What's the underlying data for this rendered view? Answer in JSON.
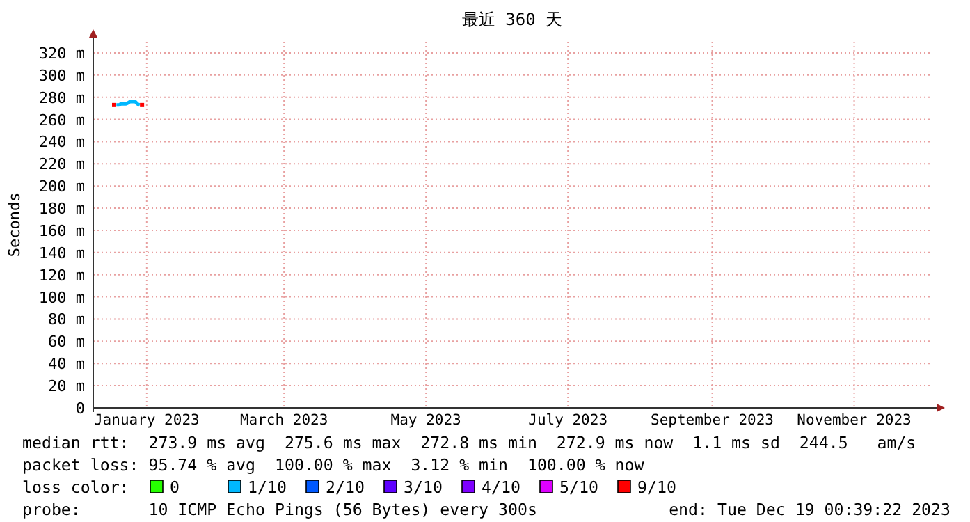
{
  "chart_data": {
    "type": "line",
    "title": "最近 360 天",
    "ylabel": "Seconds",
    "xlim": [
      "2022-12-24T00:39",
      "2023-12-19T00:39"
    ],
    "xticks": [
      {
        "value": "2023-01-16",
        "label": "January 2023"
      },
      {
        "value": "2023-03-16",
        "label": "March 2023"
      },
      {
        "value": "2023-05-16",
        "label": "May 2023"
      },
      {
        "value": "2023-07-16",
        "label": "July 2023"
      },
      {
        "value": "2023-09-16",
        "label": "September 2023"
      },
      {
        "value": "2023-11-16",
        "label": "November 2023"
      }
    ],
    "ylim": [
      0,
      330
    ],
    "yticks": [
      0,
      {
        "value": 20,
        "label": "20 m"
      },
      {
        "value": 40,
        "label": "40 m"
      },
      {
        "value": 60,
        "label": "60 m"
      },
      {
        "value": 80,
        "label": "80 m"
      },
      {
        "value": 100,
        "label": "100 m"
      },
      {
        "value": 120,
        "label": "120 m"
      },
      {
        "value": 140,
        "label": "140 m"
      },
      {
        "value": 160,
        "label": "160 m"
      },
      {
        "value": 180,
        "label": "180 m"
      },
      {
        "value": 200,
        "label": "200 m"
      },
      {
        "value": 220,
        "label": "220 m"
      },
      {
        "value": 240,
        "label": "240 m"
      },
      {
        "value": 260,
        "label": "260 m"
      },
      {
        "value": 280,
        "label": "280 m"
      },
      {
        "value": 300,
        "label": "300 m"
      },
      {
        "value": 320,
        "label": "320 m"
      }
    ],
    "grid": true,
    "legend": "bottom",
    "legend_title": "loss color:",
    "series": [
      {
        "name": "0",
        "color": "#26ff00"
      },
      {
        "name": "1/10",
        "color": "#00b8ff",
        "x": [
          "2023-01-03",
          "2023-01-04",
          "2023-01-05",
          "2023-01-06",
          "2023-01-07",
          "2023-01-08",
          "2023-01-09",
          "2023-01-10",
          "2023-01-11",
          "2023-01-12",
          "2023-01-13"
        ],
        "values": [
          273,
          273,
          274,
          274,
          274,
          275,
          276,
          276,
          276,
          274,
          273
        ]
      },
      {
        "name": "2/10",
        "color": "#0059ff"
      },
      {
        "name": "3/10",
        "color": "#5e00ff"
      },
      {
        "name": "4/10",
        "color": "#7e00ff"
      },
      {
        "name": "5/10",
        "color": "#dd00ff"
      },
      {
        "name": "9/10",
        "type": "scatter",
        "marker": "square",
        "color": "#ff0000",
        "x": [
          "2023-01-02",
          "2023-01-14"
        ],
        "values": [
          273,
          273
        ]
      }
    ],
    "annotations": [
      "median rtt:  273.9 ms avg  275.6 ms max  272.8 ms min  272.9 ms now  1.1 ms sd  244.5   am/s",
      "packet loss: 95.74 % avg  100.00 % max  3.12 % min  100.00 % now",
      "probe:       10 ICMP Echo Pings (56 Bytes) every 300s",
      "end: Tue Dec 19 00:39:22 2023"
    ]
  }
}
